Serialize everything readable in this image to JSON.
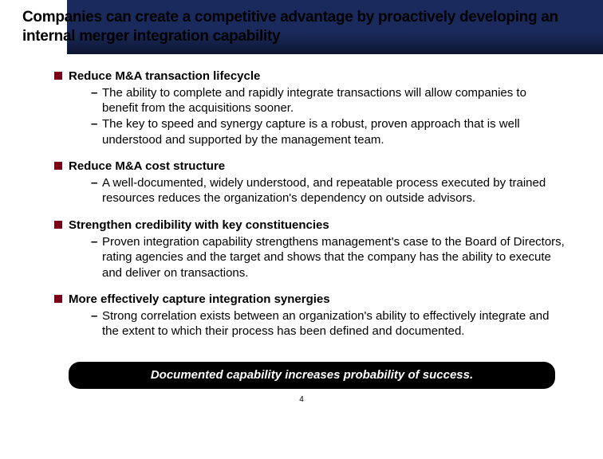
{
  "header": {
    "title": "Companies can create a competitive advantage by proactively developing an internal merger integration capability",
    "bg_gradient_top": "#1a2a5c",
    "bg_gradient_bottom": "#0d1530",
    "title_color": "#000000",
    "title_fontsize": 19
  },
  "bullet_color": "#7a0019",
  "text_color": "#000000",
  "body_fontsize": 15,
  "sections": [
    {
      "title": "Reduce M&A transaction lifecycle",
      "items": [
        "The ability to complete and rapidly integrate transactions will allow companies to benefit from the acquisitions sooner.",
        "The key to speed and synergy capture is a robust, proven approach that is well understood and supported by the management team."
      ]
    },
    {
      "title": "Reduce M&A cost structure",
      "items": [
        "A well-documented, widely understood, and repeatable process executed by trained resources reduces the organization's dependency on outside advisors."
      ]
    },
    {
      "title": "Strengthen credibility with key constituencies",
      "items": [
        "Proven integration capability strengthens management's case to the Board of Directors, rating agencies and the target and shows that the company has the ability to execute and deliver on transactions."
      ]
    },
    {
      "title": "More effectively capture integration synergies",
      "items": [
        "Strong correlation exists between an organization's ability to effectively integrate and the extent to which their process has been defined and documented."
      ]
    }
  ],
  "footer": {
    "text": "Documented capability increases probability of success.",
    "bg_color": "#000000",
    "text_color": "#ffffff",
    "fontsize": 15
  },
  "page_number": "4"
}
